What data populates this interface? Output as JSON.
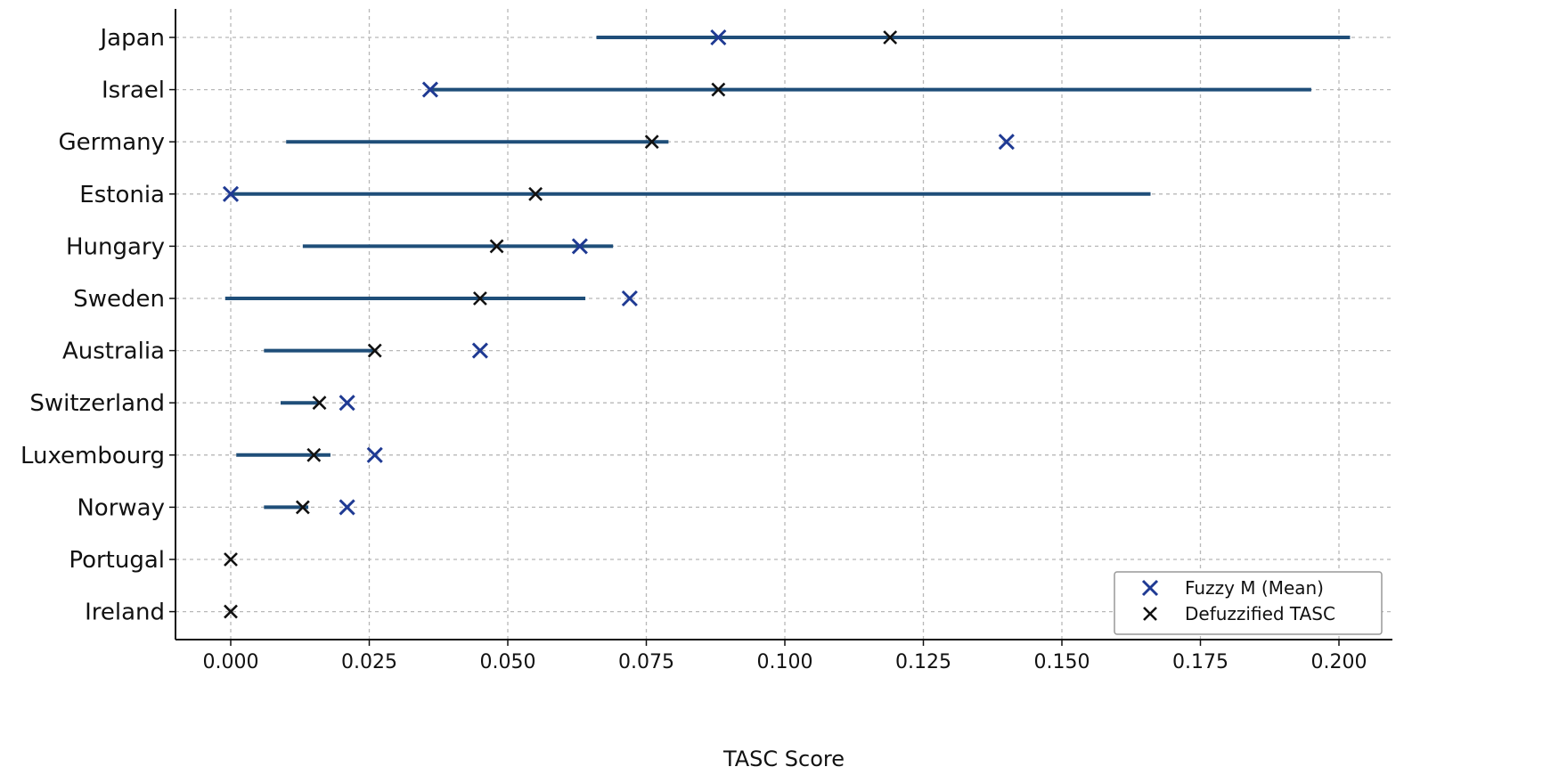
{
  "chart_data": {
    "type": "scatter",
    "title": "",
    "xlabel": "TASC Score",
    "ylabel": "",
    "xlim": [
      -0.01,
      0.213
    ],
    "xticks": [
      "0.000",
      "0.025",
      "0.050",
      "0.075",
      "0.100",
      "0.125",
      "0.150",
      "0.175",
      "0.200"
    ],
    "xtick_values": [
      0,
      0.025,
      0.05,
      0.075,
      0.1,
      0.125,
      0.15,
      0.175,
      0.2
    ],
    "grid": true,
    "legend_position": "bottom-right",
    "colors": {
      "range": "#1f4e79",
      "fuzzy": "#1f3a93",
      "defuzz": "#111111"
    },
    "categories": [
      "Japan",
      "Israel",
      "Germany",
      "Estonia",
      "Hungary",
      "Sweden",
      "Australia",
      "Switzerland",
      "Luxembourg",
      "Norway",
      "Portugal",
      "Ireland"
    ],
    "ranges": [
      [
        0.066,
        0.202
      ],
      [
        0.036,
        0.195
      ],
      [
        0.01,
        0.079
      ],
      [
        0.0,
        0.166
      ],
      [
        0.013,
        0.069
      ],
      [
        -0.001,
        0.064
      ],
      [
        0.006,
        0.026
      ],
      [
        0.009,
        0.016
      ],
      [
        0.001,
        0.018
      ],
      [
        0.006,
        0.014
      ],
      null,
      null
    ],
    "series": [
      {
        "name": "Fuzzy M (Mean)",
        "marker": "x",
        "values": [
          0.088,
          0.036,
          0.14,
          0.0,
          0.063,
          0.072,
          0.045,
          0.021,
          0.026,
          0.021,
          null,
          null
        ]
      },
      {
        "name": "Defuzzified TASC",
        "marker": "x",
        "values": [
          0.119,
          0.088,
          0.076,
          0.055,
          0.048,
          0.045,
          0.026,
          0.016,
          0.015,
          0.013,
          0.0,
          0.0
        ]
      }
    ]
  }
}
